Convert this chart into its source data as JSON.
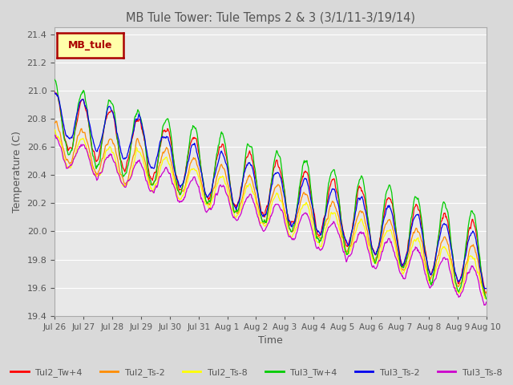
{
  "title": "MB Tule Tower: Tule Temps 2 & 3 (3/1/11-3/19/14)",
  "xlabel": "Time",
  "ylabel": "Temperature (C)",
  "ylim": [
    19.4,
    21.45
  ],
  "yticks": [
    19.4,
    19.6,
    19.8,
    20.0,
    20.2,
    20.4,
    20.6,
    20.8,
    21.0,
    21.2,
    21.4
  ],
  "xtick_labels": [
    "Jul 26",
    "Jul 27",
    "Jul 28",
    "Jul 29",
    "Jul 30",
    "Jul 31",
    "Aug 1",
    "Aug 2",
    "Aug 3",
    "Aug 4",
    "Aug 5",
    "Aug 6",
    "Aug 7",
    "Aug 8",
    "Aug 9",
    "Aug 10"
  ],
  "legend_labels": [
    "Tul2_Tw+4",
    "Tul2_Ts-2",
    "Tul2_Ts-8",
    "Tul3_Tw+4",
    "Tul3_Ts-2",
    "Tul3_Ts-8"
  ],
  "legend_colors": [
    "#ff0000",
    "#ff8c00",
    "#ffff00",
    "#00cc00",
    "#0000ee",
    "#cc00cc"
  ],
  "inset_label": "MB_tule",
  "inset_label_color": "#aa0000",
  "inset_bg": "#ffffaa",
  "background_color": "#e8e8e8",
  "grid_color": "#ffffff",
  "title_color": "#555555",
  "axis_label_color": "#555555",
  "tick_color": "#555555",
  "fig_bg": "#d9d9d9"
}
